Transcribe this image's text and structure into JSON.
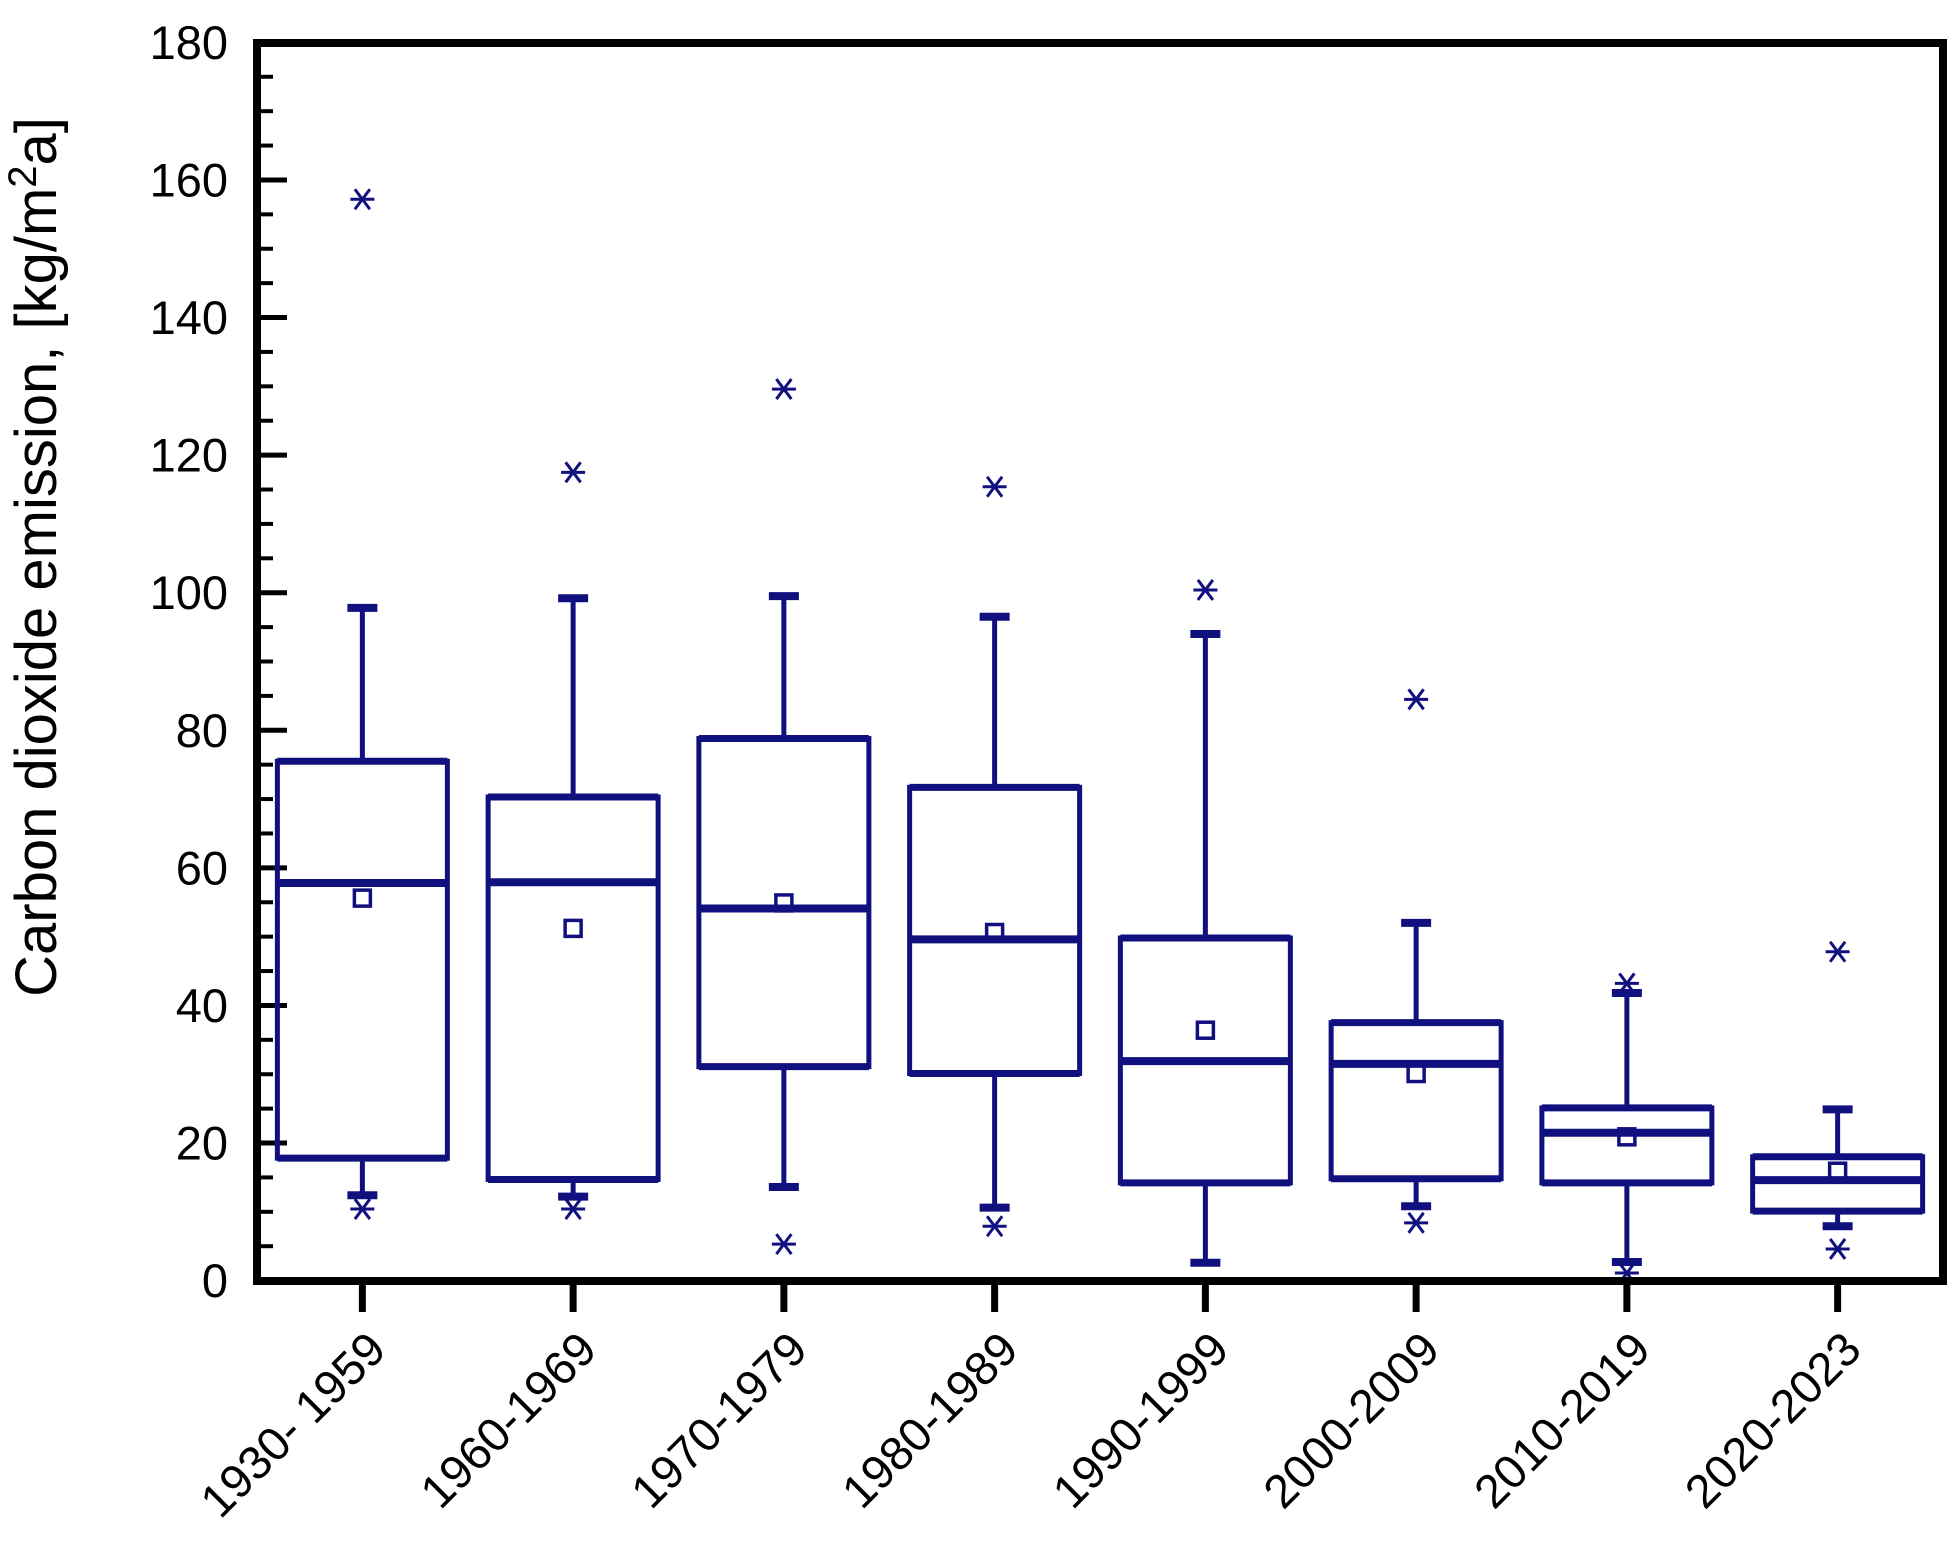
{
  "page": {
    "background_color": "#ffffff"
  },
  "chart_data": {
    "type": "box",
    "title": "",
    "xlabel": "",
    "ylabel": "Carbon dioxide emission, [kg/m²a]",
    "ylabel_parts": {
      "before_sup": "Carbon dioxide emission, [kg/m",
      "sup": "2",
      "after_sup": "a]"
    },
    "ylim": [
      0,
      180
    ],
    "ytick_major_step": 20,
    "ytick_minor_step": 5,
    "ytick_labels": [
      "0",
      "20",
      "40",
      "60",
      "80",
      "100",
      "120",
      "140",
      "160",
      "180"
    ],
    "grid": false,
    "legend_position": "none",
    "categories": [
      "1930- 1959",
      "1960-1969",
      "1970-1979",
      "1980-1989",
      "1990-1999",
      "2000-2009",
      "2010-2019",
      "2020-2023"
    ],
    "series": [
      {
        "category": "1930- 1959",
        "whisker_low": 12.4,
        "q1": 17.8,
        "median": 57.8,
        "q3": 75.5,
        "whisker_high": 97.8,
        "mean": 55.6,
        "outliers": [
          157.2,
          10.4
        ]
      },
      {
        "category": "1960-1969",
        "whisker_low": 12.2,
        "q1": 14.7,
        "median": 57.9,
        "q3": 70.3,
        "whisker_high": 99.2,
        "mean": 51.2,
        "outliers": [
          117.5,
          10.4
        ]
      },
      {
        "category": "1970-1979",
        "whisker_low": 13.6,
        "q1": 31.1,
        "median": 54.1,
        "q3": 78.8,
        "whisker_high": 99.5,
        "mean": 54.9,
        "outliers": [
          129.6,
          5.3
        ]
      },
      {
        "category": "1980-1989",
        "whisker_low": 10.6,
        "q1": 30.1,
        "median": 49.6,
        "q3": 71.7,
        "whisker_high": 96.5,
        "mean": 50.6,
        "outliers": [
          115.4,
          7.9
        ]
      },
      {
        "category": "1990-1999",
        "whisker_low": 2.6,
        "q1": 14.2,
        "median": 31.9,
        "q3": 49.8,
        "whisker_high": 94.0,
        "mean": 36.4,
        "outliers": [
          100.4
        ]
      },
      {
        "category": "2000-2009",
        "whisker_low": 10.8,
        "q1": 14.8,
        "median": 31.5,
        "q3": 37.5,
        "whisker_high": 52.0,
        "mean": 30.1,
        "outliers": [
          84.5,
          8.4
        ]
      },
      {
        "category": "2010-2019",
        "whisker_low": 2.7,
        "q1": 14.2,
        "median": 21.5,
        "q3": 25.1,
        "whisker_high": 41.8,
        "mean": 20.9,
        "outliers": [
          43.2,
          1.1
        ]
      },
      {
        "category": "2020-2023",
        "whisker_low": 7.9,
        "q1": 10.1,
        "median": 14.6,
        "q3": 18.0,
        "whisker_high": 24.9,
        "mean": 15.9,
        "outliers": [
          47.8,
          4.6
        ]
      }
    ],
    "marker_semantics": {
      "open_square": "mean value",
      "six_spoke_star": "outlier / extreme value",
      "box": "interquartile range with median line",
      "whiskers": "range caps"
    },
    "colors": {
      "series_line": "#10107e",
      "axis_and_text": "#000000",
      "background": "#ffffff"
    }
  }
}
